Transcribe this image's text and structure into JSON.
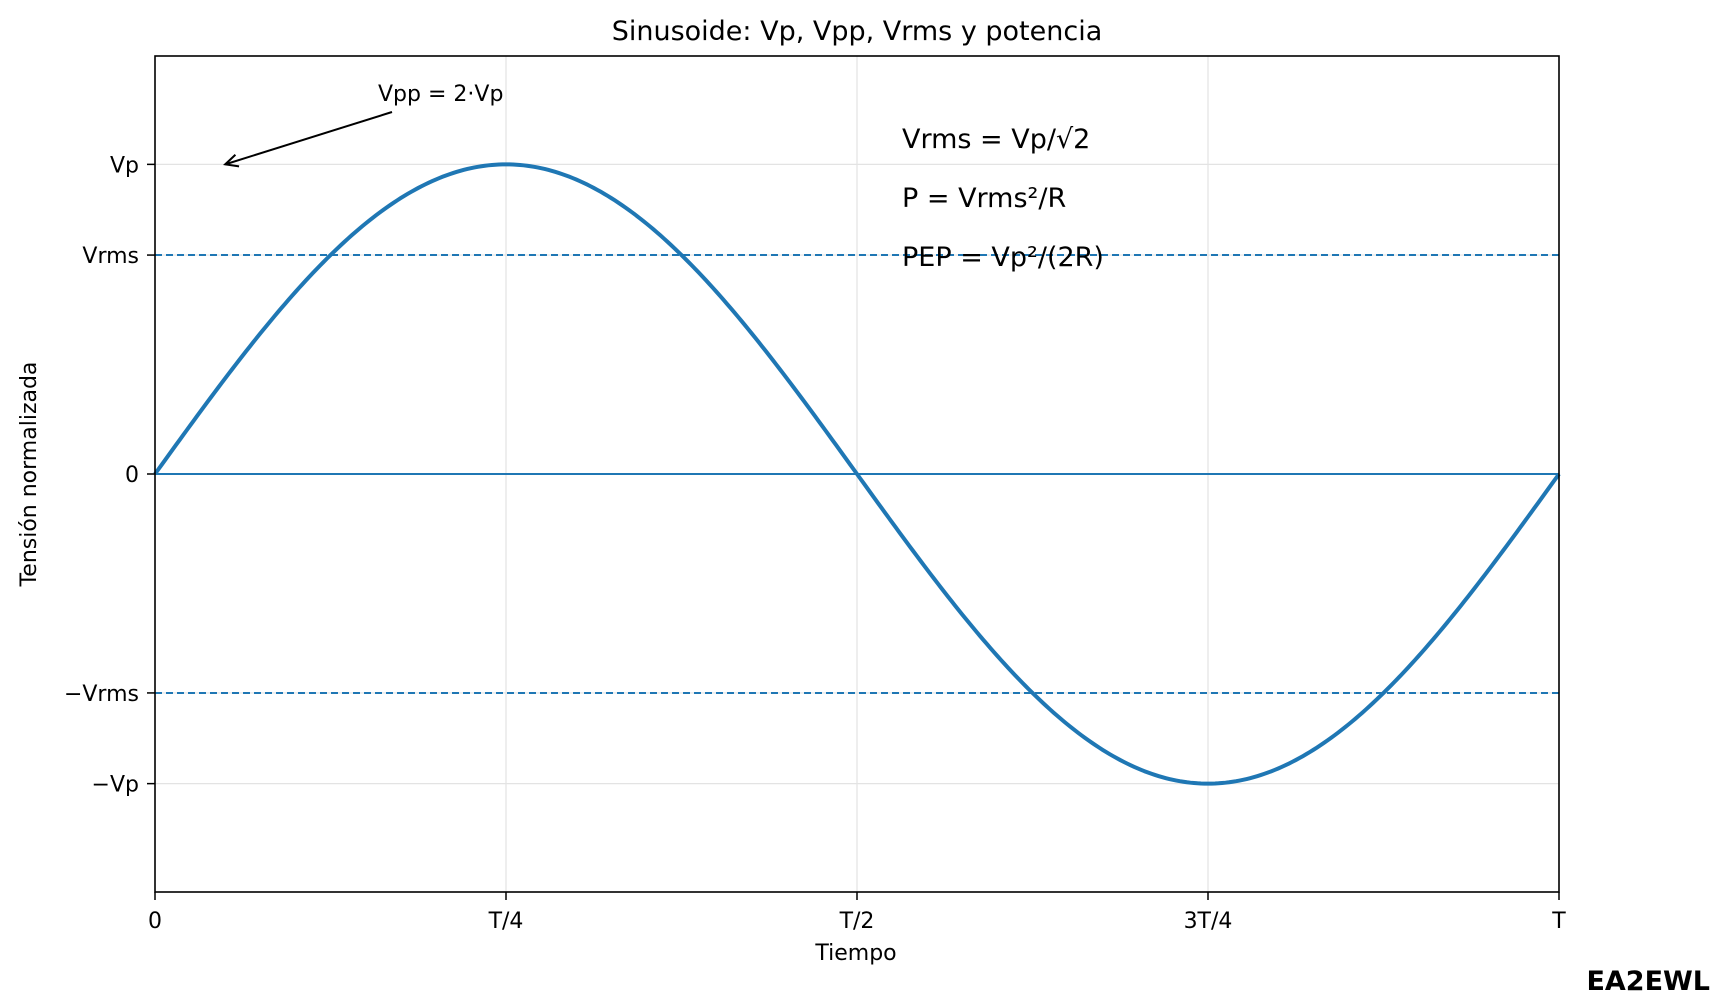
{
  "chart_data": {
    "type": "line",
    "title": "Sinusoide: Vp, Vpp, Vrms y potencia",
    "xlabel": "Tiempo",
    "ylabel": "Tensión normalizada",
    "xlim": [
      0,
      1
    ],
    "ylim": [
      -1.35,
      1.35
    ],
    "grid": true,
    "x_ticks": [
      {
        "value": 0,
        "label": "0"
      },
      {
        "value": 0.25,
        "label": "T/4"
      },
      {
        "value": 0.5,
        "label": "T/2"
      },
      {
        "value": 0.75,
        "label": "3T/4"
      },
      {
        "value": 1,
        "label": "T"
      }
    ],
    "y_ticks": [
      {
        "value": 1,
        "label": "Vp"
      },
      {
        "value": 0.7071,
        "label": "Vrms"
      },
      {
        "value": 0,
        "label": "0"
      },
      {
        "value": -0.7071,
        "label": "−Vrms"
      },
      {
        "value": -1,
        "label": "−Vp"
      }
    ],
    "series": [
      {
        "function": "sin(2πx)",
        "color": "#1f77b4",
        "x": [
          0,
          0.0625,
          0.125,
          0.1875,
          0.25,
          0.3125,
          0.375,
          0.4375,
          0.5,
          0.5625,
          0.625,
          0.6875,
          0.75,
          0.8125,
          0.875,
          0.9375,
          1
        ],
        "values": [
          0,
          0.383,
          0.707,
          0.924,
          1,
          0.924,
          0.707,
          0.383,
          0,
          -0.383,
          -0.707,
          -0.924,
          -1,
          -0.924,
          -0.707,
          -0.383,
          0
        ]
      }
    ],
    "reference_lines": [
      {
        "y": 0.7071,
        "style": "dashed",
        "color": "#1f77b4"
      },
      {
        "y": -0.7071,
        "style": "dashed",
        "color": "#1f77b4"
      },
      {
        "y": 0,
        "style": "solid",
        "color": "#1f77b4"
      }
    ],
    "annotations": [
      {
        "text": "Vpp = 2·Vp",
        "arrow_to": {
          "x": 0.05,
          "y": 1
        }
      }
    ],
    "formulas": [
      "Vrms = Vp/√2",
      "P = Vrms²/R",
      "PEP = Vp²/(2R)"
    ]
  },
  "watermark": "EA2EWL"
}
